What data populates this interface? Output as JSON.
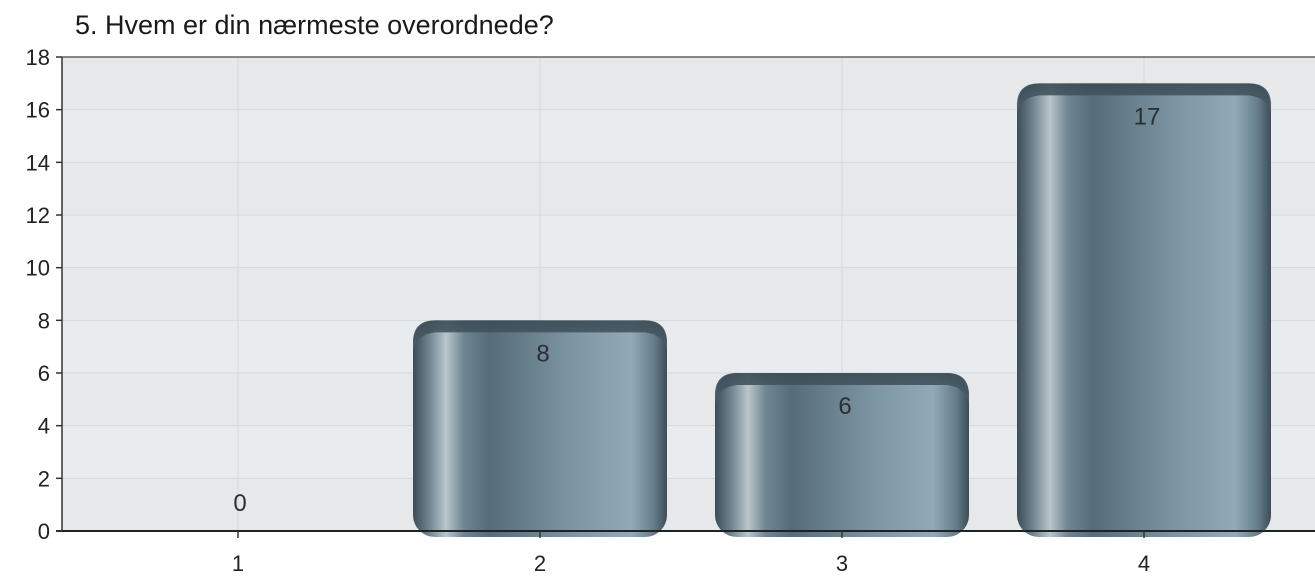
{
  "chart_data": {
    "type": "bar",
    "title": "5. Hvem er din nærmeste overordnede?",
    "xlabel": "",
    "ylabel": "",
    "categories": [
      "1",
      "2",
      "3",
      "4"
    ],
    "values": [
      0,
      8,
      6,
      17
    ],
    "data_labels": [
      "0",
      "8",
      "6",
      "17"
    ],
    "yticks": [
      0,
      2,
      4,
      6,
      8,
      10,
      12,
      14,
      16,
      18
    ],
    "ylim": [
      0,
      18
    ],
    "grid": true,
    "legend": "none",
    "colors": {
      "bar_dark": "#3f525e",
      "bar_mid": "#6e8794",
      "bar_light": "#8fa6b2",
      "highlight": "#c3ced3",
      "plot_band_a": "#e6e8ea",
      "plot_band_b": "#e8ecef",
      "grid": "#d6d8da"
    }
  }
}
